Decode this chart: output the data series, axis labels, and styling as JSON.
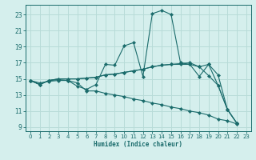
{
  "title": "",
  "xlabel": "Humidex (Indice chaleur)",
  "ylabel": "",
  "bg_color": "#d5efed",
  "grid_color": "#b8dbd8",
  "line_color": "#1a6b6b",
  "xlim": [
    -0.5,
    23.5
  ],
  "ylim": [
    8.5,
    24.2
  ],
  "xticks": [
    0,
    1,
    2,
    3,
    4,
    5,
    6,
    7,
    8,
    9,
    10,
    11,
    12,
    13,
    14,
    15,
    16,
    17,
    18,
    19,
    20,
    21,
    22,
    23
  ],
  "yticks": [
    9,
    11,
    13,
    15,
    17,
    19,
    21,
    23
  ],
  "series": [
    {
      "x": [
        0,
        1,
        2,
        3,
        4,
        5,
        6,
        7,
        8,
        9,
        10,
        11,
        12,
        13,
        14,
        15,
        16,
        17,
        18,
        19,
        20,
        21,
        22
      ],
      "y": [
        14.8,
        14.3,
        14.8,
        14.9,
        14.8,
        14.1,
        13.7,
        14.3,
        16.8,
        16.7,
        19.1,
        19.5,
        15.3,
        23.1,
        23.5,
        23.0,
        17.0,
        16.8,
        15.3,
        16.8,
        14.2,
        11.2,
        9.5
      ]
    },
    {
      "x": [
        0,
        1,
        2,
        3,
        4,
        5,
        6,
        7,
        8,
        9,
        10,
        11,
        12,
        13,
        14,
        15,
        16,
        17,
        18,
        19,
        20,
        21,
        22
      ],
      "y": [
        14.8,
        14.3,
        14.8,
        15.0,
        15.0,
        15.0,
        15.1,
        15.2,
        15.5,
        15.6,
        15.8,
        16.0,
        16.2,
        16.5,
        16.7,
        16.8,
        16.8,
        16.8,
        16.5,
        16.8,
        15.5,
        11.2,
        9.5
      ]
    },
    {
      "x": [
        0,
        1,
        2,
        3,
        4,
        5,
        6,
        7,
        8,
        9,
        10,
        11,
        12,
        13,
        14,
        15,
        16,
        17,
        18,
        19,
        20,
        21,
        22
      ],
      "y": [
        14.8,
        14.3,
        14.8,
        15.0,
        15.0,
        15.0,
        15.1,
        15.2,
        15.5,
        15.6,
        15.8,
        16.0,
        16.2,
        16.5,
        16.7,
        16.8,
        16.9,
        17.0,
        16.5,
        15.4,
        14.2,
        11.2,
        9.5
      ]
    },
    {
      "x": [
        0,
        1,
        2,
        3,
        4,
        5,
        6,
        7,
        8,
        9,
        10,
        11,
        12,
        13,
        14,
        15,
        16,
        17,
        18,
        19,
        20,
        21,
        22
      ],
      "y": [
        14.8,
        14.5,
        14.7,
        14.8,
        14.8,
        14.5,
        13.5,
        13.5,
        13.2,
        13.0,
        12.8,
        12.5,
        12.3,
        12.0,
        11.8,
        11.5,
        11.3,
        11.0,
        10.8,
        10.5,
        10.0,
        9.8,
        9.4
      ]
    }
  ]
}
